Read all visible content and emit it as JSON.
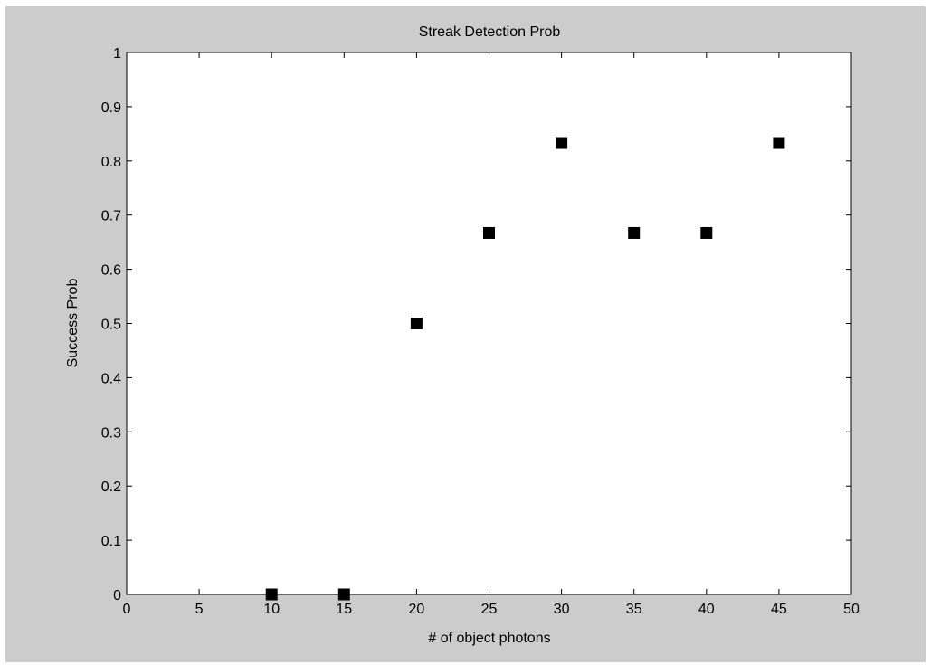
{
  "colors": {
    "figure_background": "#cccccc",
    "axes_background": "#ffffff",
    "axis_color": "#000000",
    "marker_color": "#000000"
  },
  "chart_data": {
    "type": "scatter",
    "title": "Streak Detection Prob",
    "xlabel": "# of object photons",
    "ylabel": "Success Prob",
    "xlim": [
      0,
      50
    ],
    "ylim": [
      0,
      1
    ],
    "xticks": [
      0,
      5,
      10,
      15,
      20,
      25,
      30,
      35,
      40,
      45,
      50
    ],
    "xtick_labels": [
      "0",
      "5",
      "10",
      "15",
      "20",
      "25",
      "30",
      "35",
      "40",
      "45",
      "50"
    ],
    "yticks": [
      0,
      0.1,
      0.2,
      0.3,
      0.4,
      0.5,
      0.6,
      0.7,
      0.8,
      0.9,
      1
    ],
    "ytick_labels": [
      "0",
      "0.1",
      "0.2",
      "0.3",
      "0.4",
      "0.5",
      "0.6",
      "0.7",
      "0.8",
      "0.9",
      "1"
    ],
    "grid": false,
    "marker": "square",
    "series": [
      {
        "x": [
          10,
          15,
          20,
          25,
          30,
          35,
          40,
          45
        ],
        "y": [
          0,
          0,
          0.5,
          0.667,
          0.833,
          0.667,
          0.667,
          0.833
        ]
      }
    ]
  }
}
